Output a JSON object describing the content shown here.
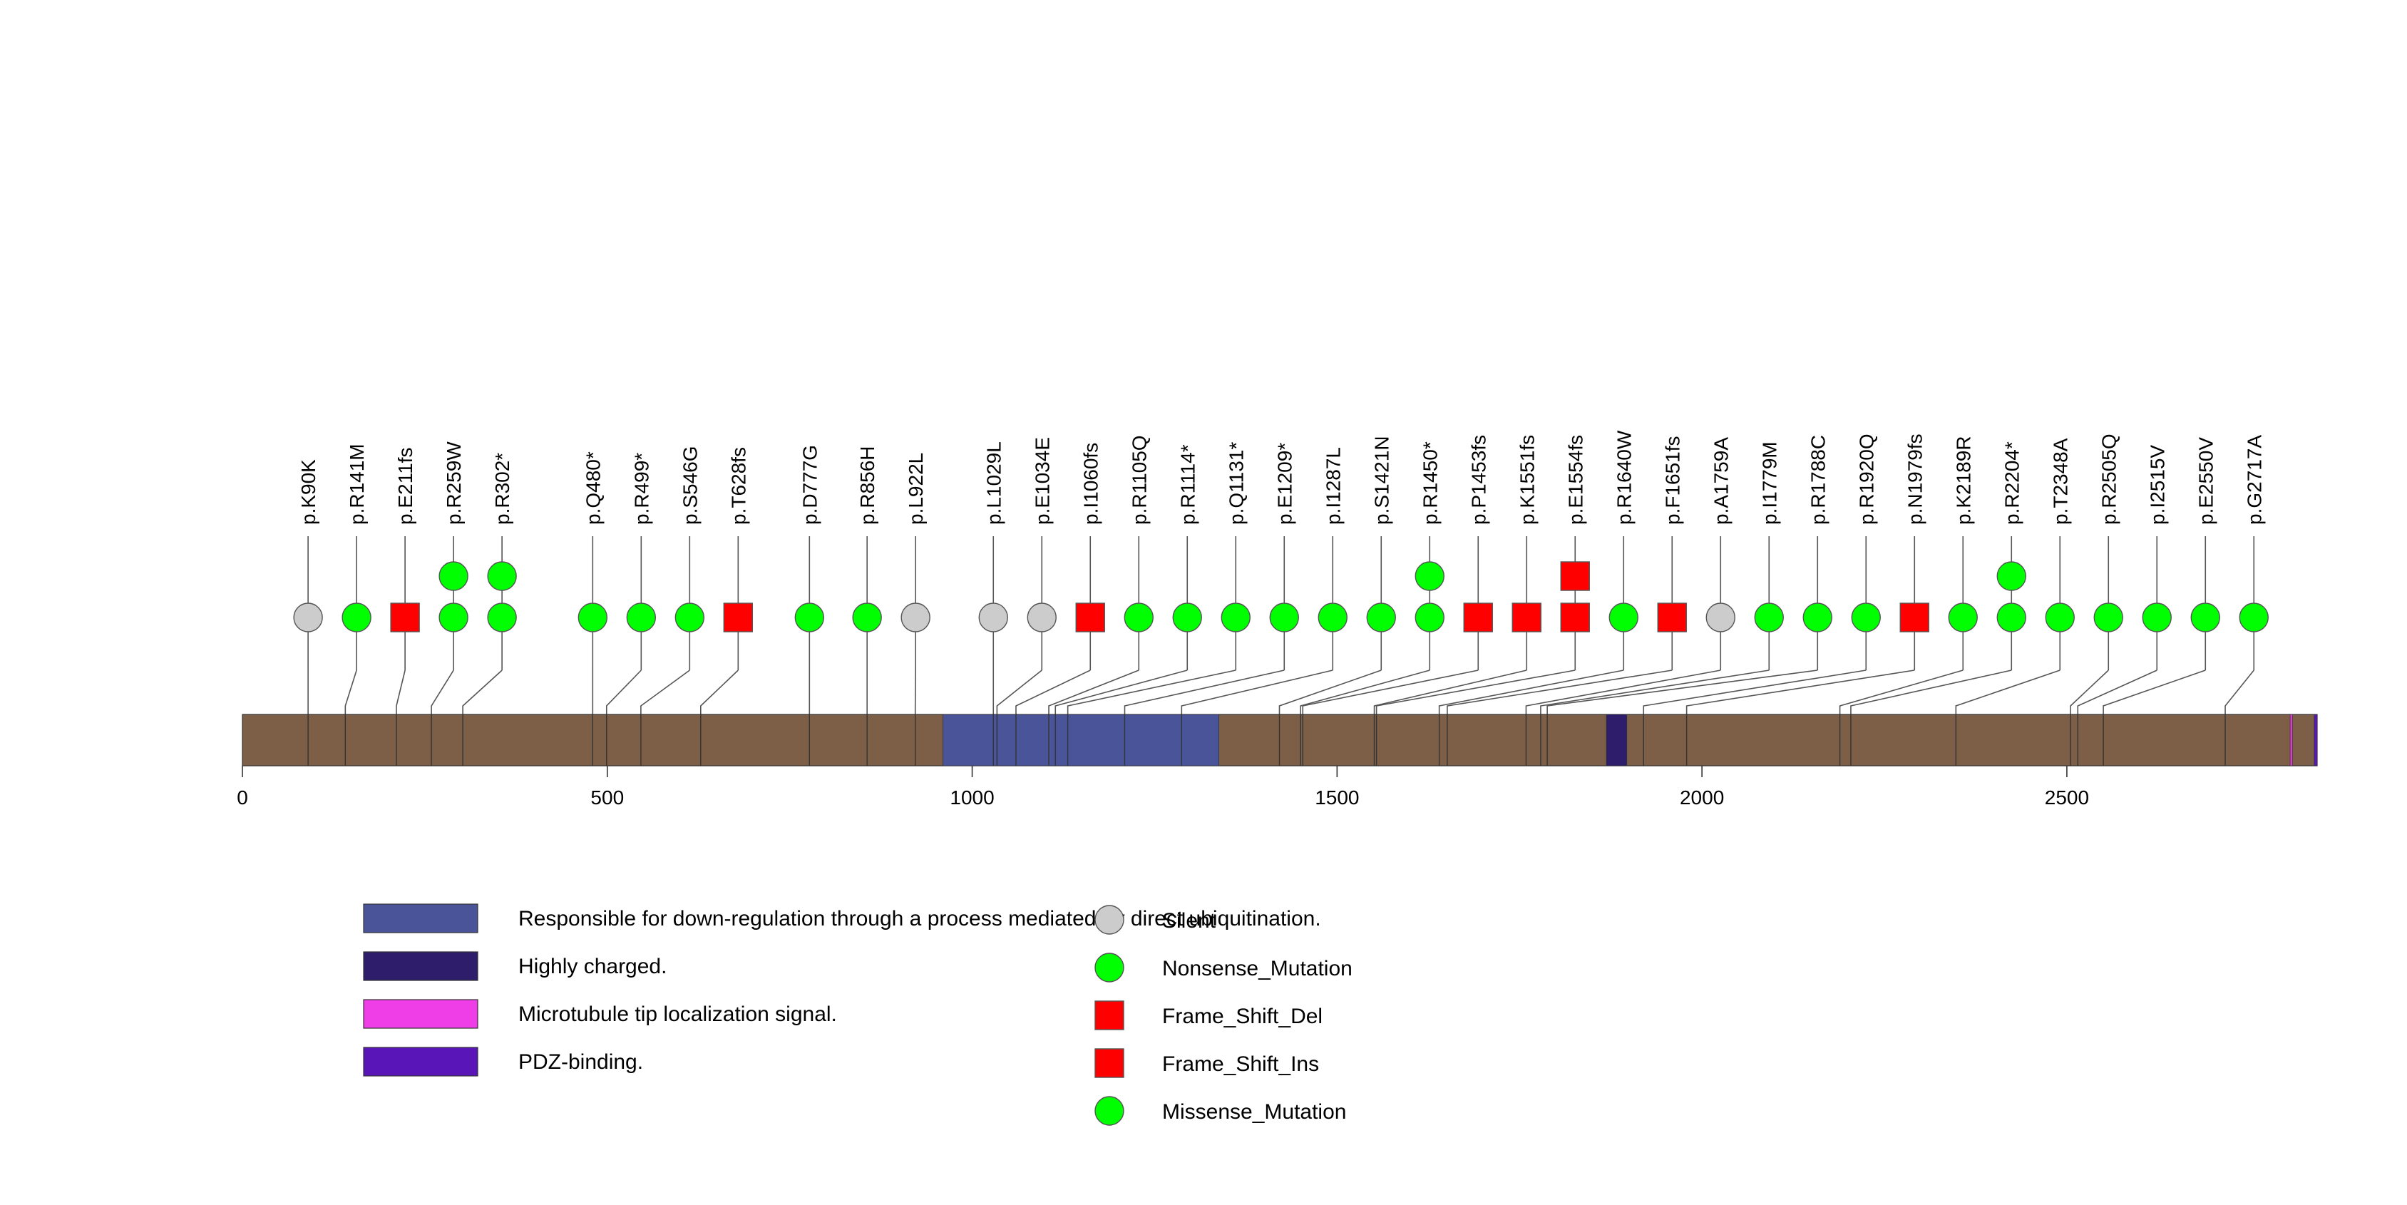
{
  "chart_data": {
    "type": "lollipop",
    "protein_length": 2843,
    "x_ticks": [
      0,
      500,
      1000,
      1500,
      2000,
      2500
    ],
    "x_tick_labels": [
      "0",
      "500",
      "1000",
      "1500",
      "2000",
      "2500"
    ],
    "backbone_color": "#7d5f47",
    "domains": [
      {
        "start": 960,
        "end": 1338,
        "color": "#4a5599",
        "label": "Responsible for down-regulation through a process mediated by direct ubiquitination."
      },
      {
        "start": 1869,
        "end": 1897,
        "color": "#2e1d6b",
        "label": "Highly charged."
      },
      {
        "start": 2806,
        "end": 2809,
        "color": "#ef3de8",
        "label": "Microtubule tip localization signal."
      },
      {
        "start": 2839,
        "end": 2843,
        "color": "#5a15b8",
        "label": "PDZ-binding."
      }
    ],
    "mutations": [
      {
        "label": "p.K90K",
        "pos": 90,
        "shapes": [
          "silent"
        ]
      },
      {
        "label": "p.R141M",
        "pos": 141,
        "shapes": [
          "missense"
        ]
      },
      {
        "label": "p.E211fs",
        "pos": 211,
        "shapes": [
          "fsdel"
        ]
      },
      {
        "label": "p.R259W",
        "pos": 259,
        "shapes": [
          "missense",
          "missense"
        ]
      },
      {
        "label": "p.R302*",
        "pos": 302,
        "shapes": [
          "nonsense",
          "nonsense"
        ]
      },
      {
        "label": "p.Q480*",
        "pos": 480,
        "shapes": [
          "nonsense"
        ]
      },
      {
        "label": "p.R499*",
        "pos": 499,
        "shapes": [
          "nonsense"
        ]
      },
      {
        "label": "p.S546G",
        "pos": 546,
        "shapes": [
          "missense"
        ]
      },
      {
        "label": "p.T628fs",
        "pos": 628,
        "shapes": [
          "fsdel"
        ]
      },
      {
        "label": "p.D777G",
        "pos": 777,
        "shapes": [
          "missense"
        ]
      },
      {
        "label": "p.R856H",
        "pos": 856,
        "shapes": [
          "missense"
        ]
      },
      {
        "label": "p.L922L",
        "pos": 922,
        "shapes": [
          "silent"
        ]
      },
      {
        "label": "p.L1029L",
        "pos": 1029,
        "shapes": [
          "silent"
        ]
      },
      {
        "label": "p.E1034E",
        "pos": 1034,
        "shapes": [
          "silent"
        ]
      },
      {
        "label": "p.I1060fs",
        "pos": 1060,
        "shapes": [
          "fsdel"
        ]
      },
      {
        "label": "p.R1105Q",
        "pos": 1105,
        "shapes": [
          "missense"
        ]
      },
      {
        "label": "p.R1114*",
        "pos": 1114,
        "shapes": [
          "nonsense"
        ]
      },
      {
        "label": "p.Q1131*",
        "pos": 1131,
        "shapes": [
          "nonsense"
        ]
      },
      {
        "label": "p.E1209*",
        "pos": 1209,
        "shapes": [
          "nonsense"
        ]
      },
      {
        "label": "p.I1287L",
        "pos": 1287,
        "shapes": [
          "missense"
        ]
      },
      {
        "label": "p.S1421N",
        "pos": 1421,
        "shapes": [
          "missense"
        ]
      },
      {
        "label": "p.R1450*",
        "pos": 1450,
        "shapes": [
          "nonsense",
          "nonsense"
        ]
      },
      {
        "label": "p.P1453fs",
        "pos": 1453,
        "shapes": [
          "fsdel"
        ]
      },
      {
        "label": "p.K1551fs",
        "pos": 1551,
        "shapes": [
          "fsdel"
        ]
      },
      {
        "label": "p.E1554fs",
        "pos": 1554,
        "shapes": [
          "fsdel",
          "fsdel"
        ]
      },
      {
        "label": "p.R1640W",
        "pos": 1640,
        "shapes": [
          "missense"
        ]
      },
      {
        "label": "p.F1651fs",
        "pos": 1651,
        "shapes": [
          "fsdel"
        ]
      },
      {
        "label": "p.A1759A",
        "pos": 1759,
        "shapes": [
          "silent"
        ]
      },
      {
        "label": "p.I1779M",
        "pos": 1779,
        "shapes": [
          "missense"
        ]
      },
      {
        "label": "p.R1788C",
        "pos": 1788,
        "shapes": [
          "missense"
        ]
      },
      {
        "label": "p.R1920Q",
        "pos": 1920,
        "shapes": [
          "missense"
        ]
      },
      {
        "label": "p.N1979fs",
        "pos": 1979,
        "shapes": [
          "fsdel"
        ]
      },
      {
        "label": "p.K2189R",
        "pos": 2189,
        "shapes": [
          "missense"
        ]
      },
      {
        "label": "p.R2204*",
        "pos": 2204,
        "shapes": [
          "nonsense",
          "nonsense"
        ]
      },
      {
        "label": "p.T2348A",
        "pos": 2348,
        "shapes": [
          "missense"
        ]
      },
      {
        "label": "p.R2505Q",
        "pos": 2505,
        "shapes": [
          "missense"
        ]
      },
      {
        "label": "p.I2515V",
        "pos": 2515,
        "shapes": [
          "missense"
        ]
      },
      {
        "label": "p.E2550V",
        "pos": 2550,
        "shapes": [
          "missense"
        ]
      },
      {
        "label": "p.G2717A",
        "pos": 2717,
        "shapes": [
          "missense"
        ]
      }
    ],
    "mutation_legend": [
      {
        "type": "silent",
        "label": "Silent",
        "shape": "circle",
        "color": "#cccccc"
      },
      {
        "type": "nonsense",
        "label": "Nonsense_Mutation",
        "shape": "circle",
        "color": "#00ff00"
      },
      {
        "type": "fsdel",
        "label": "Frame_Shift_Del",
        "shape": "square",
        "color": "#ff0000"
      },
      {
        "type": "fsins",
        "label": "Frame_Shift_Ins",
        "shape": "square",
        "color": "#ff0000"
      },
      {
        "type": "missense",
        "label": "Missense_Mutation",
        "shape": "circle",
        "color": "#00ff00"
      }
    ]
  }
}
